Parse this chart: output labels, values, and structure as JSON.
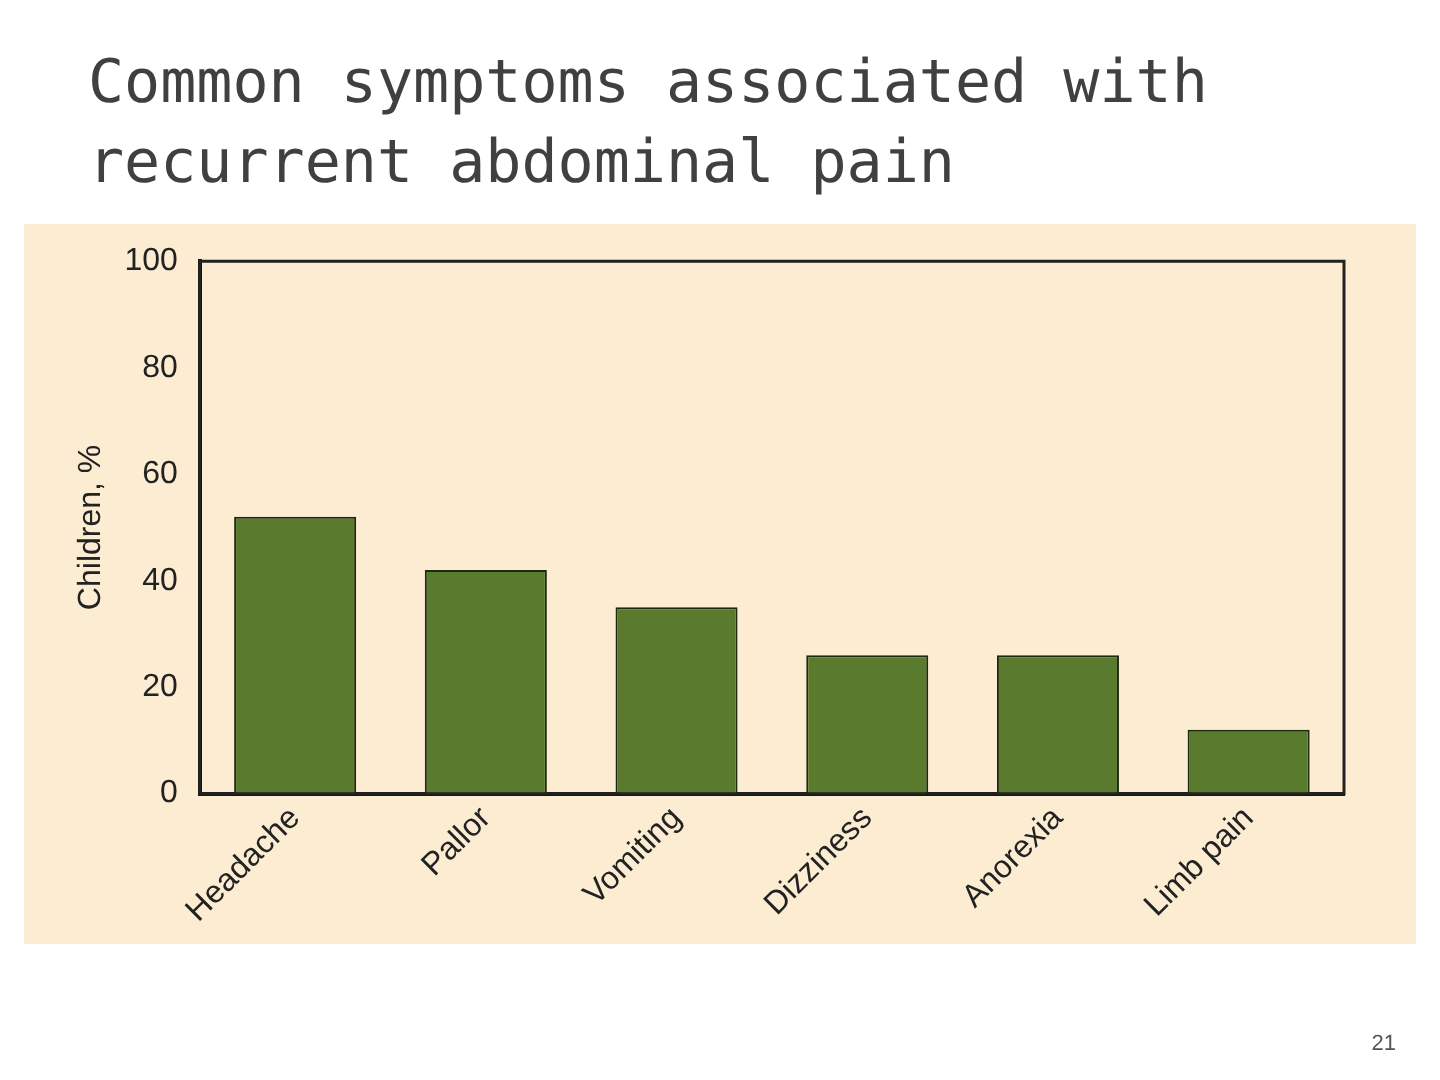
{
  "chart_data": {
    "type": "bar",
    "title": "Common symptoms associated with recurrent abdominal pain",
    "ylabel": "Children, %",
    "categories": [
      "Headache",
      "Pallor",
      "Vomiting",
      "Dizziness",
      "Anorexia",
      "Limb pain"
    ],
    "values": [
      52,
      42,
      35,
      26,
      26,
      12
    ],
    "color": "#5a7a2e",
    "ylim": [
      0,
      100
    ],
    "yticks": [
      0,
      20,
      40,
      60,
      80,
      100
    ],
    "grid": false,
    "legend": false,
    "annotations": [
      "21"
    ]
  }
}
